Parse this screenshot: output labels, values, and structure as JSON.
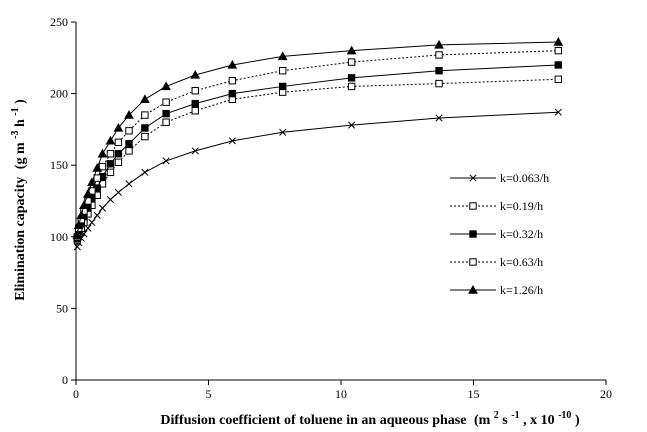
{
  "chart_data": {
    "type": "line",
    "title": "",
    "xlabel": "Diffusion coefficient of toluene in an aqueous phase",
    "xlabel_unit_pre": "(m",
    "xlabel_unit_sup1": "2",
    "xlabel_unit_mid": " s",
    "xlabel_unit_sup2": "-1",
    "xlabel_unit_post": ", x 10",
    "xlabel_unit_sup3": "-10",
    "xlabel_unit_end": ")",
    "ylabel": "Elimination capacity",
    "ylabel_unit_pre": "(g m",
    "ylabel_unit_sup1": "-3",
    "ylabel_unit_mid": "h",
    "ylabel_unit_sup2": "-1",
    "ylabel_unit_end": ")",
    "xlim": [
      0,
      20
    ],
    "ylim": [
      0,
      250
    ],
    "xticks": [
      0,
      5,
      10,
      15,
      20
    ],
    "yticks": [
      0,
      50,
      100,
      150,
      200,
      250
    ],
    "grid": false,
    "legend_position": "right",
    "x": [
      0.05,
      0.1,
      0.2,
      0.3,
      0.45,
      0.6,
      0.8,
      1.0,
      1.3,
      1.6,
      2.0,
      2.6,
      3.4,
      4.5,
      5.9,
      7.8,
      10.4,
      13.7,
      18.2
    ],
    "series": [
      {
        "name": "k=0.063/h",
        "marker": "x",
        "dash": "solid",
        "values": [
          93,
          96,
          99,
          102,
          106,
          110,
          115,
          120,
          126,
          131,
          137,
          145,
          153,
          160,
          167,
          173,
          178,
          183,
          187
        ]
      },
      {
        "name": "k=0.19/h",
        "marker": "open-square",
        "dash": "dotted",
        "values": [
          98,
          102,
          106,
          110,
          116,
          122,
          129,
          137,
          145,
          152,
          160,
          170,
          180,
          188,
          196,
          201,
          205,
          207,
          210
        ]
      },
      {
        "name": "k=0.32/h",
        "marker": "filled-square",
        "dash": "solid",
        "values": [
          99,
          104,
          109,
          114,
          120,
          127,
          134,
          142,
          151,
          158,
          165,
          176,
          186,
          193,
          200,
          205,
          211,
          216,
          220
        ]
      },
      {
        "name": "k=0.63/h",
        "marker": "open-square",
        "dash": "dotted",
        "values": [
          100,
          106,
          112,
          118,
          125,
          132,
          141,
          149,
          158,
          166,
          174,
          185,
          194,
          202,
          209,
          216,
          222,
          227,
          230
        ]
      },
      {
        "name": "k=1.26/h",
        "marker": "filled-triangle",
        "dash": "solid",
        "values": [
          101,
          108,
          115,
          122,
          130,
          138,
          148,
          158,
          167,
          176,
          185,
          196,
          205,
          213,
          220,
          226,
          230,
          234,
          236
        ]
      }
    ]
  }
}
